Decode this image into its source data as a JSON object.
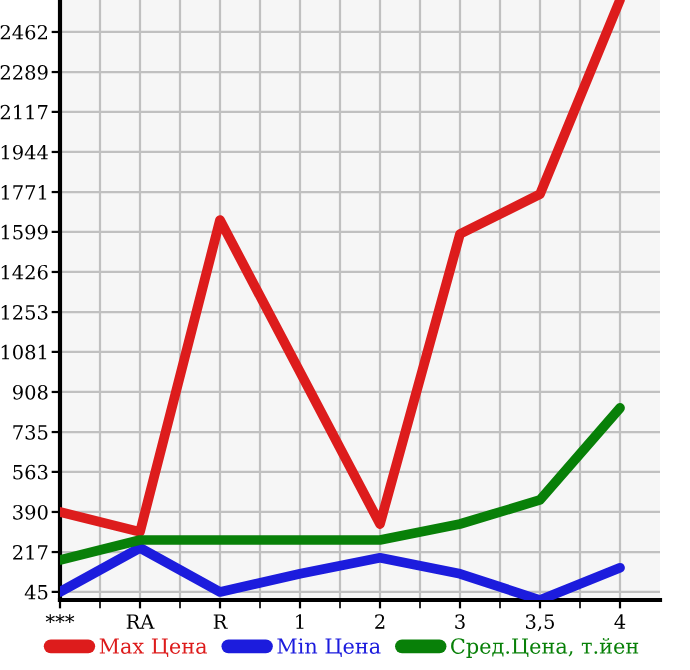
{
  "chart_data": {
    "type": "line",
    "categories": [
      "***",
      "RA",
      "R",
      "1",
      "2",
      "3",
      "3,5",
      "4"
    ],
    "series": [
      {
        "name": "Max Цена",
        "color": "#dd1c1c",
        "values": [
          390,
          304,
          1650,
          994,
          338,
          1590,
          1762,
          2600
        ]
      },
      {
        "name": "Min Цена",
        "color": "#1c1cdd",
        "values": [
          45,
          235,
          45,
          123,
          192,
          123,
          10,
          149
        ]
      },
      {
        "name": "Сред.Цена, т.йен",
        "color": "#088008",
        "values": [
          183,
          269,
          269,
          269,
          269,
          338,
          442,
          839
        ]
      }
    ],
    "ylim": [
      10,
      2600
    ],
    "yticks": [
      45,
      217,
      390,
      563,
      735,
      908,
      1081,
      1253,
      1426,
      1599,
      1771,
      1944,
      2117,
      2289,
      2462
    ],
    "grid": true,
    "legend": "bottom",
    "marker": "none",
    "line_style": "solid"
  }
}
